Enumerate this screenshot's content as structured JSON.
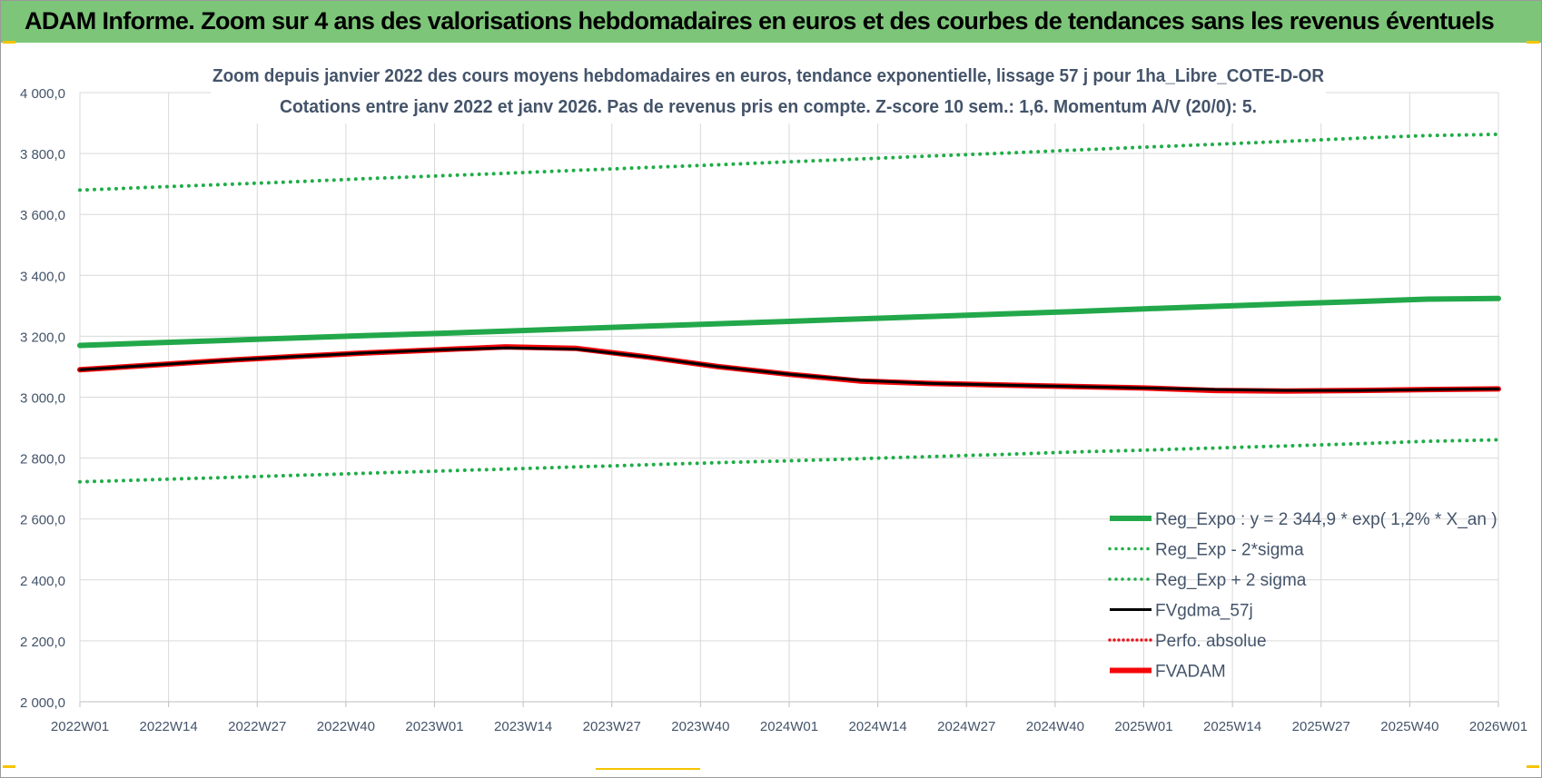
{
  "banner": {
    "title": "ADAM Informe. Zoom sur 4 ans des valorisations hebdomadaires en euros et des courbes de tendances sans les revenus éventuels"
  },
  "colors": {
    "banner": "#7dc579",
    "reg_expo": "#22a84a",
    "band": "#1fad48",
    "fvgdma": "#000000",
    "perfo": "#e8161b",
    "fvadam": "#f4070a",
    "axis_text": "#44546a",
    "grid": "#d9d9d9"
  },
  "chart_data": {
    "type": "line",
    "title_line1": "Zoom depuis janvier 2022 des cours moyens hebdomadaires en euros, tendance exponentielle, lissage 57 j pour 1ha_Libre_COTE-D-OR",
    "title_line2": "Cotations entre janv 2022 et janv 2026. Pas de revenus pris en compte. Z-score 10 sem.: 1,6. Momentum A/V (20/0): 5.",
    "ylim": [
      2000,
      4000
    ],
    "y_ticks": [
      "4 000,0",
      "3 800,0",
      "3 600,0",
      "3 400,0",
      "3 200,0",
      "3 000,0",
      "2 800,0",
      "2 600,0",
      "2 400,0",
      "2 200,0",
      "2 000,0"
    ],
    "x_ticks": [
      "2022W01",
      "2022W14",
      "2022W27",
      "2022W40",
      "2023W01",
      "2023W14",
      "2023W27",
      "2023W40",
      "2024W01",
      "2024W14",
      "2024W27",
      "2024W40",
      "2025W01",
      "2025W14",
      "2025W27",
      "2025W40",
      "2026W01"
    ],
    "grid": true,
    "legend_position": "bottom-right",
    "series": [
      {
        "name": "Reg_Expo : y = 2 344,9 * exp( 1,2% *  X_an )",
        "style": "solid-thick",
        "color": "#22a84a",
        "values": [
          3170,
          3178,
          3186,
          3194,
          3202,
          3209,
          3217,
          3225,
          3233,
          3241,
          3249,
          3257,
          3265,
          3273,
          3281,
          3290,
          3298,
          3306,
          3314,
          3322,
          3324
        ]
      },
      {
        "name": "Reg_Exp - 2*sigma",
        "style": "dotted",
        "color": "#1fad48",
        "values": [
          2722,
          2729,
          2736,
          2743,
          2750,
          2757,
          2764,
          2771,
          2778,
          2785,
          2791,
          2798,
          2805,
          2812,
          2820,
          2826,
          2833,
          2840,
          2847,
          2855,
          2860
        ]
      },
      {
        "name": "Reg_Exp + 2 sigma",
        "style": "dotted",
        "color": "#1fad48",
        "values": [
          3680,
          3689,
          3698,
          3707,
          3717,
          3726,
          3735,
          3745,
          3754,
          3763,
          3773,
          3782,
          3792,
          3801,
          3811,
          3821,
          3830,
          3840,
          3850,
          3859,
          3863
        ]
      },
      {
        "name": "FVgdma_57j",
        "style": "solid",
        "color": "#000000",
        "values": [
          3090,
          3105,
          3120,
          3133,
          3145,
          3155,
          3162,
          3158,
          3132,
          3100,
          3075,
          3055,
          3045,
          3040,
          3035,
          3030,
          3025,
          3022,
          3022,
          3025,
          3027
        ]
      },
      {
        "name": "Perfo. absolue",
        "style": "dotted",
        "color": "#e8161b",
        "values": []
      },
      {
        "name": "FVADAM",
        "style": "solid-thick",
        "color": "#f4070a",
        "values": [
          3090,
          3105,
          3120,
          3133,
          3145,
          3155,
          3165,
          3160,
          3132,
          3100,
          3075,
          3053,
          3045,
          3040,
          3035,
          3030,
          3022,
          3020,
          3022,
          3025,
          3027
        ]
      }
    ]
  }
}
